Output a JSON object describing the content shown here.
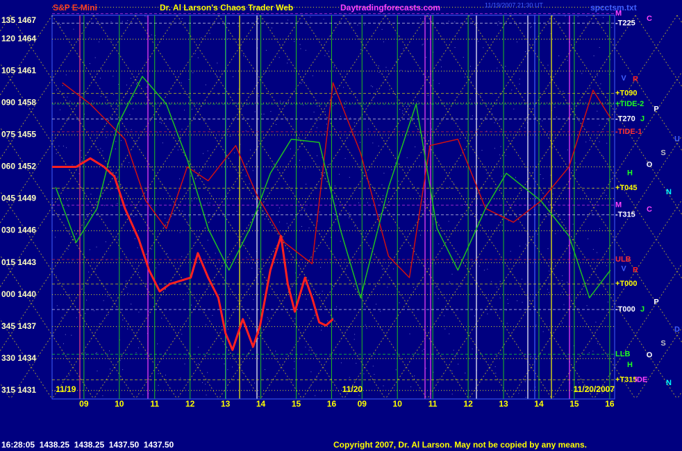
{
  "chart_data": {
    "type": "line",
    "title": "Dr. Al Larson's Chaos Trader Web",
    "instrument": "S&P E-Mini",
    "website": "Daytradingforecasts.com",
    "file_name": "spcctsm.txt",
    "timestamp": "11/19/2007 21:30 UT",
    "footer_quote": "16:28:05  1438.25  1438.25  1437.50  1437.50",
    "copyright": "Copyright 2007, Dr. Al Larson. May not be copied by any means.",
    "xlim": [
      8.1,
      24.0
    ],
    "ylim": [
      1430.2,
      1467.35
    ],
    "grid": true,
    "xticks": [
      {
        "value": 9,
        "label": "09"
      },
      10,
      11,
      12,
      13,
      14,
      15,
      16,
      {
        "value": 16.86,
        "label": "09"
      },
      {
        "value": 17.86,
        "label": "10"
      },
      {
        "value": 18.86,
        "label": "11"
      },
      {
        "value": 19.86,
        "label": "12"
      },
      {
        "value": 20.86,
        "label": "13"
      },
      {
        "value": 21.86,
        "label": "14"
      },
      {
        "value": 22.86,
        "label": "15"
      },
      {
        "value": 23.86,
        "label": "16"
      }
    ],
    "yticks": [
      {
        "value": 1467,
        "label": "135 1467"
      },
      {
        "value": 1464,
        "label": "120 1464"
      },
      {
        "value": 1461,
        "label": "105 1461"
      },
      {
        "value": 1458,
        "label": "090 1458"
      },
      {
        "value": 1455,
        "label": "075 1455"
      },
      {
        "value": 1452,
        "label": "060 1452"
      },
      {
        "value": 1449,
        "label": "045 1449"
      },
      {
        "value": 1446,
        "label": "030 1446"
      },
      {
        "value": 1443,
        "label": "015 1443"
      },
      {
        "value": 1440,
        "label": "000 1440"
      },
      {
        "value": 1437,
        "label": "345 1437"
      },
      {
        "value": 1434,
        "label": "330 1434"
      },
      {
        "value": 1431,
        "label": "315 1431"
      }
    ],
    "date_labels": [
      {
        "text": "11/19",
        "x": 8.2
      },
      {
        "text": "11/20",
        "x": 16.3
      },
      {
        "text": "11/20/2007",
        "x": 24.0
      }
    ],
    "series": [
      {
        "color": "#ff2020",
        "x": [
          8.1,
          8.39,
          8.78,
          9.18,
          9.57,
          9.86,
          10.16,
          10.55,
          10.84,
          11.14,
          11.43,
          11.73,
          12.02,
          12.22,
          12.51,
          12.8,
          13.0,
          13.2,
          13.49,
          13.78,
          13.98,
          14.27,
          14.57,
          14.76,
          14.96,
          15.25,
          15.45,
          15.65,
          15.84,
          16.04
        ],
        "values": [
          1452.0,
          1452.0,
          1452.0,
          1452.8,
          1452.0,
          1451.1,
          1448.1,
          1445.2,
          1442.3,
          1440.3,
          1441.0,
          1441.3,
          1441.6,
          1443.9,
          1441.6,
          1439.7,
          1436.4,
          1434.8,
          1437.7,
          1435.1,
          1437.1,
          1442.3,
          1445.5,
          1441.0,
          1438.4,
          1441.6,
          1439.7,
          1437.4,
          1437.1,
          1437.7
        ]
      },
      {
        "color": "#20c020",
        "x": [
          8.2,
          8.78,
          9.37,
          9.96,
          10.65,
          11.33,
          11.92,
          12.51,
          13.1,
          13.69,
          14.27,
          14.86,
          15.65,
          16.24,
          16.82,
          17.61,
          18.39,
          18.98,
          19.57,
          20.35,
          20.94,
          21.92,
          22.71,
          23.29,
          23.88
        ],
        "values": [
          1450.1,
          1444.9,
          1448.1,
          1456.0,
          1460.5,
          1457.9,
          1452.7,
          1446.2,
          1442.3,
          1446.2,
          1451.4,
          1454.6,
          1454.3,
          1446.2,
          1439.7,
          1450.1,
          1457.9,
          1446.2,
          1442.3,
          1448.1,
          1451.4,
          1448.8,
          1445.5,
          1439.7,
          1442.3
        ]
      },
      {
        "color": "#d01010",
        "x": [
          8.39,
          9.18,
          10.16,
          10.75,
          11.33,
          11.92,
          12.51,
          13.29,
          13.88,
          14.67,
          15.45,
          16.04,
          16.82,
          17.61,
          18.2,
          18.78,
          19.57,
          20.35,
          21.14,
          21.92,
          22.71,
          23.39,
          23.88
        ],
        "values": [
          1459.9,
          1457.9,
          1454.6,
          1448.8,
          1446.2,
          1452.0,
          1450.7,
          1454.0,
          1449.4,
          1444.9,
          1442.9,
          1459.9,
          1453.3,
          1443.6,
          1441.6,
          1454.0,
          1454.6,
          1448.1,
          1446.8,
          1448.8,
          1452.0,
          1459.2,
          1456.6
        ]
      }
    ],
    "level_labels": [
      {
        "text": "M",
        "y": 1466.4,
        "color": "#ff40ff"
      },
      {
        "text": "-T225",
        "y": 1465.5,
        "color": "#ffffff"
      },
      {
        "text": "+T090",
        "y": 1458.9,
        "color": "#ffff00"
      },
      {
        "text": "+TIDE-2",
        "y": 1457.9,
        "color": "#20ff20"
      },
      {
        "text": "-T270",
        "y": 1456.5,
        "color": "#ffffff"
      },
      {
        "text": "-TIDE-1",
        "y": 1455.3,
        "color": "#ff3030"
      },
      {
        "text": "+T045",
        "y": 1450.0,
        "color": "#ffff00"
      },
      {
        "text": "M",
        "y": 1448.4,
        "color": "#ff40ff"
      },
      {
        "text": "-T315",
        "y": 1447.5,
        "color": "#ffffff"
      },
      {
        "text": "ULB",
        "y": 1443.3,
        "color": "#ff3030"
      },
      {
        "text": "+T000",
        "y": 1441.0,
        "color": "#ffff00"
      },
      {
        "text": "-T000",
        "y": 1438.6,
        "color": "#ffffff"
      },
      {
        "text": "LLB",
        "y": 1434.4,
        "color": "#20ff20"
      },
      {
        "text": "+T315",
        "y": 1432.0,
        "color": "#ffff00"
      }
    ],
    "tide_fragment": {
      "text": "IDE",
      "y": 1432.0,
      "color": "#ff40ff"
    },
    "planet_labels": [
      {
        "text": "C",
        "y": 1465.9,
        "color": "#ff40ff"
      },
      {
        "text": "V",
        "y": 1460.3,
        "color": "#4060ff"
      },
      {
        "text": "R",
        "y": 1460.2,
        "color": "#ff2020"
      },
      {
        "text": "P",
        "y": 1457.4,
        "color": "#ffffff"
      },
      {
        "text": "J",
        "y": 1456.5,
        "color": "#20ff20"
      },
      {
        "text": "U",
        "y": 1454.6,
        "color": "#4060ff"
      },
      {
        "text": "S",
        "y": 1453.3,
        "color": "#c0c0c0"
      },
      {
        "text": "O",
        "y": 1452.2,
        "color": "#ffffff"
      },
      {
        "text": "H",
        "y": 1451.4,
        "color": "#20ff20"
      },
      {
        "text": "N",
        "y": 1449.6,
        "color": "#00ffff"
      },
      {
        "text": "C",
        "y": 1448.0,
        "color": "#ff40ff"
      },
      {
        "text": "V",
        "y": 1442.4,
        "color": "#4060ff"
      },
      {
        "text": "R",
        "y": 1442.3,
        "color": "#ff2020"
      },
      {
        "text": "P",
        "y": 1439.3,
        "color": "#ffffff"
      },
      {
        "text": "J",
        "y": 1438.6,
        "color": "#20ff20"
      },
      {
        "text": "D",
        "y": 1436.7,
        "color": "#4060ff"
      },
      {
        "text": "S",
        "y": 1435.4,
        "color": "#c0c0c0"
      },
      {
        "text": "O",
        "y": 1434.3,
        "color": "#ffffff"
      },
      {
        "text": "H",
        "y": 1433.4,
        "color": "#20ff20"
      },
      {
        "text": "N",
        "y": 1431.7,
        "color": "#00ffff"
      }
    ]
  }
}
